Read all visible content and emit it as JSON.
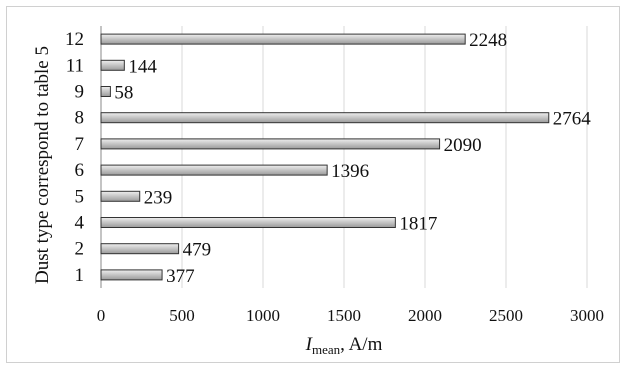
{
  "chart_data": {
    "type": "bar",
    "orientation": "horizontal",
    "categories": [
      "12",
      "11",
      "9",
      "8",
      "7",
      "6",
      "5",
      "4",
      "2",
      "1"
    ],
    "values": [
      2248,
      144,
      58,
      2764,
      2090,
      1396,
      239,
      1817,
      479,
      377
    ],
    "value_labels": [
      "2248",
      "144",
      "58",
      "2764",
      "2090",
      "1396",
      "239",
      "1817",
      "479",
      "377"
    ],
    "title": "",
    "xlabel_main": "I",
    "xlabel_sub": "mean",
    "xlabel_rest": ", A/m",
    "ylabel": "Dust type correspond to table 5",
    "xlim": [
      0,
      3000
    ],
    "xticks": [
      0,
      500,
      1000,
      1500,
      2000,
      2500,
      3000
    ],
    "xtick_labels": [
      "0",
      "500",
      "1000",
      "1500",
      "2000",
      "2500",
      "3000"
    ],
    "grid": "vertical",
    "bar_color": "#c8c8c8"
  }
}
